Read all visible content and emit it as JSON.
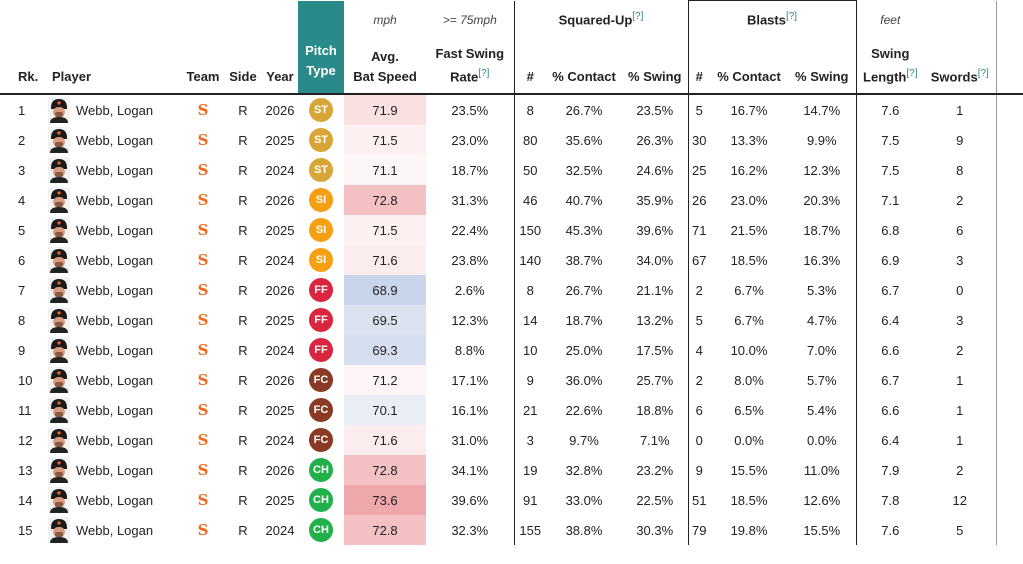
{
  "units": {
    "bat_speed": "mph",
    "fast_swing": ">= 75mph",
    "swing_length": "feet"
  },
  "groups": {
    "squared_up": "Squared-Up",
    "blasts": "Blasts",
    "footnote": "[?]"
  },
  "headers": {
    "rank": "Rk.",
    "player": "Player",
    "team": "Team",
    "side": "Side",
    "year": "Year",
    "pitch_type_l1": "Pitch",
    "pitch_type_l2": "Type",
    "bat_speed_l1": "Avg.",
    "bat_speed_l2": "Bat Speed",
    "fast_swing_l1": "Fast Swing",
    "fast_swing_l2": "Rate",
    "sq_count": "#",
    "sq_contact": "% Contact",
    "sq_swing": "% Swing",
    "bl_count": "#",
    "bl_contact": "% Contact",
    "bl_swing": "% Swing",
    "swing_length_l1": "Swing",
    "swing_length_l2": "Length",
    "swords": "Swords"
  },
  "pitch_colors": {
    "ST": "#d8a637",
    "SI": "#f5a012",
    "FF": "#d9263e",
    "FC": "#8a3a24",
    "CH": "#21b14a"
  },
  "team_logo": "giants-sf-logo",
  "rows": [
    {
      "rank": "1",
      "player": "Webb, Logan",
      "side": "R",
      "year": "2026",
      "pitch": "ST",
      "bat_speed": "71.9",
      "fast_rate": "23.5%",
      "sq_n": "8",
      "sq_contact": "26.7%",
      "sq_swing": "23.5%",
      "bl_n": "5",
      "bl_contact": "16.7%",
      "bl_swing": "14.7%",
      "length": "7.6",
      "swords": "1",
      "bs_color": "#f9e1e2"
    },
    {
      "rank": "2",
      "player": "Webb, Logan",
      "side": "R",
      "year": "2025",
      "pitch": "ST",
      "bat_speed": "71.5",
      "fast_rate": "23.0%",
      "sq_n": "80",
      "sq_contact": "35.6%",
      "sq_swing": "26.3%",
      "bl_n": "30",
      "bl_contact": "13.3%",
      "bl_swing": "9.9%",
      "length": "7.5",
      "swords": "9",
      "bs_color": "#fcf0f0"
    },
    {
      "rank": "3",
      "player": "Webb, Logan",
      "side": "R",
      "year": "2024",
      "pitch": "ST",
      "bat_speed": "71.1",
      "fast_rate": "18.7%",
      "sq_n": "50",
      "sq_contact": "32.5%",
      "sq_swing": "24.6%",
      "bl_n": "25",
      "bl_contact": "16.2%",
      "bl_swing": "12.3%",
      "length": "7.5",
      "swords": "8",
      "bs_color": "#fdf6f6"
    },
    {
      "rank": "4",
      "player": "Webb, Logan",
      "side": "R",
      "year": "2026",
      "pitch": "SI",
      "bat_speed": "72.8",
      "fast_rate": "31.3%",
      "sq_n": "46",
      "sq_contact": "40.7%",
      "sq_swing": "35.9%",
      "bl_n": "26",
      "bl_contact": "23.0%",
      "bl_swing": "20.3%",
      "length": "7.1",
      "swords": "2",
      "bs_color": "#f3c1c4"
    },
    {
      "rank": "5",
      "player": "Webb, Logan",
      "side": "R",
      "year": "2025",
      "pitch": "SI",
      "bat_speed": "71.5",
      "fast_rate": "22.4%",
      "sq_n": "150",
      "sq_contact": "45.3%",
      "sq_swing": "39.6%",
      "bl_n": "71",
      "bl_contact": "21.5%",
      "bl_swing": "18.7%",
      "length": "6.8",
      "swords": "6",
      "bs_color": "#fcf0f0"
    },
    {
      "rank": "6",
      "player": "Webb, Logan",
      "side": "R",
      "year": "2024",
      "pitch": "SI",
      "bat_speed": "71.6",
      "fast_rate": "23.8%",
      "sq_n": "140",
      "sq_contact": "38.7%",
      "sq_swing": "34.0%",
      "bl_n": "67",
      "bl_contact": "18.5%",
      "bl_swing": "16.3%",
      "length": "6.9",
      "swords": "3",
      "bs_color": "#fbeced"
    },
    {
      "rank": "7",
      "player": "Webb, Logan",
      "side": "R",
      "year": "2026",
      "pitch": "FF",
      "bat_speed": "68.9",
      "fast_rate": "2.6%",
      "sq_n": "8",
      "sq_contact": "26.7%",
      "sq_swing": "21.1%",
      "bl_n": "2",
      "bl_contact": "6.7%",
      "bl_swing": "5.3%",
      "length": "6.7",
      "swords": "0",
      "bs_color": "#c9d5ea"
    },
    {
      "rank": "8",
      "player": "Webb, Logan",
      "side": "R",
      "year": "2025",
      "pitch": "FF",
      "bat_speed": "69.5",
      "fast_rate": "12.3%",
      "sq_n": "14",
      "sq_contact": "18.7%",
      "sq_swing": "13.2%",
      "bl_n": "5",
      "bl_contact": "6.7%",
      "bl_swing": "4.7%",
      "length": "6.4",
      "swords": "3",
      "bs_color": "#dbe3f1"
    },
    {
      "rank": "9",
      "player": "Webb, Logan",
      "side": "R",
      "year": "2024",
      "pitch": "FF",
      "bat_speed": "69.3",
      "fast_rate": "8.8%",
      "sq_n": "10",
      "sq_contact": "25.0%",
      "sq_swing": "17.5%",
      "bl_n": "4",
      "bl_contact": "10.0%",
      "bl_swing": "7.0%",
      "length": "6.6",
      "swords": "2",
      "bs_color": "#d5dfef"
    },
    {
      "rank": "10",
      "player": "Webb, Logan",
      "side": "R",
      "year": "2026",
      "pitch": "FC",
      "bat_speed": "71.2",
      "fast_rate": "17.1%",
      "sq_n": "9",
      "sq_contact": "36.0%",
      "sq_swing": "25.7%",
      "bl_n": "2",
      "bl_contact": "8.0%",
      "bl_swing": "5.7%",
      "length": "6.7",
      "swords": "1",
      "bs_color": "#fdf5f5"
    },
    {
      "rank": "11",
      "player": "Webb, Logan",
      "side": "R",
      "year": "2025",
      "pitch": "FC",
      "bat_speed": "70.1",
      "fast_rate": "16.1%",
      "sq_n": "21",
      "sq_contact": "22.6%",
      "sq_swing": "18.8%",
      "bl_n": "6",
      "bl_contact": "6.5%",
      "bl_swing": "5.4%",
      "length": "6.6",
      "swords": "1",
      "bs_color": "#eaeff7"
    },
    {
      "rank": "12",
      "player": "Webb, Logan",
      "side": "R",
      "year": "2024",
      "pitch": "FC",
      "bat_speed": "71.6",
      "fast_rate": "31.0%",
      "sq_n": "3",
      "sq_contact": "9.7%",
      "sq_swing": "7.1%",
      "bl_n": "0",
      "bl_contact": "0.0%",
      "bl_swing": "0.0%",
      "length": "6.4",
      "swords": "1",
      "bs_color": "#fbeced"
    },
    {
      "rank": "13",
      "player": "Webb, Logan",
      "side": "R",
      "year": "2026",
      "pitch": "CH",
      "bat_speed": "72.8",
      "fast_rate": "34.1%",
      "sq_n": "19",
      "sq_contact": "32.8%",
      "sq_swing": "23.2%",
      "bl_n": "9",
      "bl_contact": "15.5%",
      "bl_swing": "11.0%",
      "length": "7.9",
      "swords": "2",
      "bs_color": "#f3c1c4"
    },
    {
      "rank": "14",
      "player": "Webb, Logan",
      "side": "R",
      "year": "2025",
      "pitch": "CH",
      "bat_speed": "73.6",
      "fast_rate": "39.6%",
      "sq_n": "91",
      "sq_contact": "33.0%",
      "sq_swing": "22.5%",
      "bl_n": "51",
      "bl_contact": "18.5%",
      "bl_swing": "12.6%",
      "length": "7.8",
      "swords": "12",
      "bs_color": "#eea8ac"
    },
    {
      "rank": "15",
      "player": "Webb, Logan",
      "side": "R",
      "year": "2024",
      "pitch": "CH",
      "bat_speed": "72.8",
      "fast_rate": "32.3%",
      "sq_n": "155",
      "sq_contact": "38.8%",
      "sq_swing": "30.3%",
      "bl_n": "79",
      "bl_contact": "19.8%",
      "bl_swing": "15.5%",
      "length": "7.6",
      "swords": "5",
      "bs_color": "#f3c1c4"
    }
  ]
}
